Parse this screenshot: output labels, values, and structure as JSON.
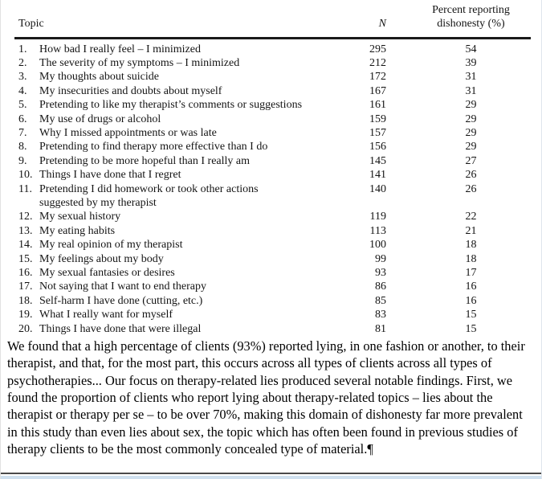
{
  "window": {
    "bottom_edge_color": "#cfe0ef"
  },
  "table": {
    "header": {
      "topic": "Topic",
      "n": "N",
      "percent_line1": "Percent reporting",
      "percent_line2": "dishonesty (%)"
    },
    "rows": [
      {
        "num": "1.",
        "topic": "How bad I really feel – I minimized",
        "n": "295",
        "pct": "54"
      },
      {
        "num": "2.",
        "topic": "The severity of my symptoms – I minimized",
        "n": "212",
        "pct": "39"
      },
      {
        "num": "3.",
        "topic": "My thoughts about suicide",
        "n": "172",
        "pct": "31"
      },
      {
        "num": "4.",
        "topic": "My insecurities and doubts about myself",
        "n": "167",
        "pct": "31"
      },
      {
        "num": "5.",
        "topic": "Pretending to like my therapist’s comments or suggestions",
        "n": "161",
        "pct": "29"
      },
      {
        "num": "6.",
        "topic": "My use of drugs or alcohol",
        "n": "159",
        "pct": "29"
      },
      {
        "num": "7.",
        "topic": "Why I missed appointments or was late",
        "n": "157",
        "pct": "29"
      },
      {
        "num": "8.",
        "topic": "Pretending to find therapy more effective than I do",
        "n": "156",
        "pct": "29"
      },
      {
        "num": "9.",
        "topic": "Pretending to be more hopeful than I really am",
        "n": "145",
        "pct": "27"
      },
      {
        "num": "10.",
        "topic": "Things I have done that I regret",
        "n": "141",
        "pct": "26"
      },
      {
        "num": "11.",
        "topic": "Pretending I did homework or took other actions",
        "topic2": "suggested by my therapist",
        "n": "140",
        "pct": "26"
      },
      {
        "num": "12.",
        "topic": "My sexual history",
        "n": "119",
        "pct": "22"
      },
      {
        "num": "13.",
        "topic": "My eating habits",
        "n": "113",
        "pct": "21"
      },
      {
        "num": "14.",
        "topic": "My real opinion of my therapist",
        "n": "100",
        "pct": "18"
      },
      {
        "num": "15.",
        "topic": "My feelings about my body",
        "n": "99",
        "pct": "18"
      },
      {
        "num": "16.",
        "topic": "My sexual fantasies or desires",
        "n": "93",
        "pct": "17"
      },
      {
        "num": "17.",
        "topic": "Not saying that I want to end therapy",
        "n": "86",
        "pct": "16"
      },
      {
        "num": "18.",
        "topic": "Self-harm I have done (cutting, etc.)",
        "n": "85",
        "pct": "16"
      },
      {
        "num": "19.",
        "topic": "What I really want for myself",
        "n": "83",
        "pct": "15"
      },
      {
        "num": "20.",
        "topic": "Things I have done that were illegal",
        "n": "81",
        "pct": "15"
      }
    ]
  },
  "paragraph": {
    "text": "We found that a high percentage of clients (93%) reported lying, in one fashion or another, to their therapist, and that, for the most part, this occurs across all types of clients across all types of psychotherapies... Our focus on therapy-related lies produced several notable findings. First, we found the proportion of clients who report lying about therapy-related topics – lies about the therapist or therapy per se – to be over 70%, making this domain of dishonesty far more prevalent in this study than even lies about sex, the topic which has often been found in previous studies of therapy clients to be the most commonly concealed type of material.",
    "pilcrow": "¶"
  }
}
